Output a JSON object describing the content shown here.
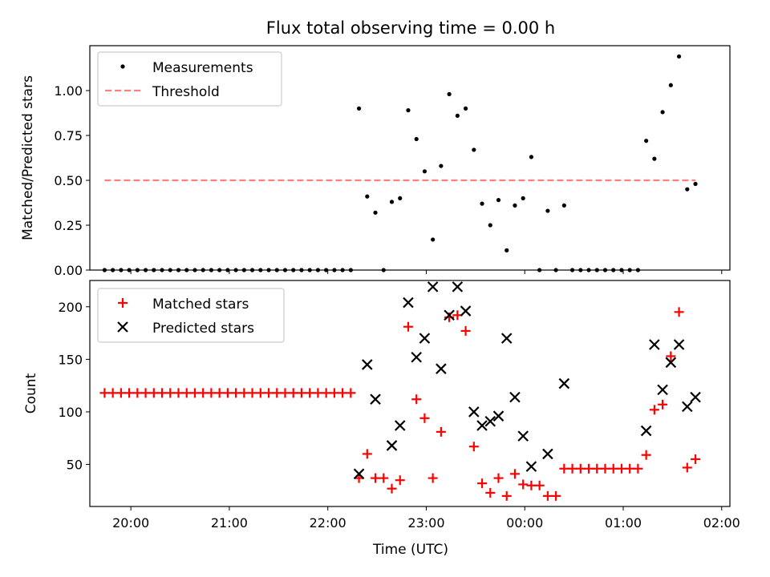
{
  "chart_data": [
    {
      "type": "scatter",
      "title": "Flux total observing time = 0.00 h",
      "xlabel": "",
      "ylabel": "Matched/Predicted stars",
      "ylim": [
        0,
        1.25
      ],
      "yticks": [
        "0.00",
        "0.25",
        "0.50",
        "0.75",
        "1.00"
      ],
      "ytick_values": [
        0,
        0.25,
        0.5,
        0.75,
        1.0
      ],
      "xlim": [
        "19:35",
        "02:05"
      ],
      "xtick_values": [
        "20:00",
        "21:00",
        "22:00",
        "23:00",
        "00:00",
        "01:00",
        "02:00"
      ],
      "legend_position": "top-left",
      "colors": {
        "measurements": "#000000",
        "threshold": "#ff7f7f"
      },
      "series": [
        {
          "name": "Measurements",
          "marker": "dot",
          "points": [
            [
              "19:44",
              0
            ],
            [
              "19:49",
              0
            ],
            [
              "19:54",
              0
            ],
            [
              "19:59",
              0
            ],
            [
              "20:04",
              0
            ],
            [
              "20:09",
              0
            ],
            [
              "20:14",
              0
            ],
            [
              "20:19",
              0
            ],
            [
              "20:24",
              0
            ],
            [
              "20:29",
              0
            ],
            [
              "20:34",
              0
            ],
            [
              "20:39",
              0
            ],
            [
              "20:44",
              0
            ],
            [
              "20:49",
              0
            ],
            [
              "20:54",
              0
            ],
            [
              "20:59",
              0
            ],
            [
              "21:04",
              0
            ],
            [
              "21:09",
              0
            ],
            [
              "21:14",
              0
            ],
            [
              "21:19",
              0
            ],
            [
              "21:24",
              0
            ],
            [
              "21:29",
              0
            ],
            [
              "21:34",
              0
            ],
            [
              "21:39",
              0
            ],
            [
              "21:44",
              0
            ],
            [
              "21:49",
              0
            ],
            [
              "21:54",
              0
            ],
            [
              "21:59",
              0
            ],
            [
              "22:04",
              0
            ],
            [
              "22:09",
              0
            ],
            [
              "22:14",
              0
            ],
            [
              "22:19",
              0.9
            ],
            [
              "22:24",
              0.41
            ],
            [
              "22:29",
              0.32
            ],
            [
              "22:34",
              0
            ],
            [
              "22:39",
              0.38
            ],
            [
              "22:44",
              0.4
            ],
            [
              "22:49",
              0.89
            ],
            [
              "22:54",
              0.73
            ],
            [
              "22:59",
              0.55
            ],
            [
              "23:04",
              0.17
            ],
            [
              "23:09",
              0.58
            ],
            [
              "23:14",
              0.98
            ],
            [
              "23:19",
              0.86
            ],
            [
              "23:24",
              0.9
            ],
            [
              "23:29",
              0.67
            ],
            [
              "23:34",
              0.37
            ],
            [
              "23:39",
              0.25
            ],
            [
              "23:44",
              0.39
            ],
            [
              "23:49",
              0.11
            ],
            [
              "23:54",
              0.36
            ],
            [
              "23:59",
              0.4
            ],
            [
              "00:04",
              0.63
            ],
            [
              "00:09",
              0
            ],
            [
              "00:14",
              0.33
            ],
            [
              "00:19",
              0
            ],
            [
              "00:24",
              0.36
            ],
            [
              "00:29",
              0
            ],
            [
              "00:34",
              0
            ],
            [
              "00:39",
              0
            ],
            [
              "00:44",
              0
            ],
            [
              "00:49",
              0
            ],
            [
              "00:54",
              0
            ],
            [
              "00:59",
              0
            ],
            [
              "01:04",
              0
            ],
            [
              "01:09",
              0
            ],
            [
              "01:14",
              0.72
            ],
            [
              "01:19",
              0.62
            ],
            [
              "01:24",
              0.88
            ],
            [
              "01:29",
              1.03
            ],
            [
              "01:34",
              1.19
            ],
            [
              "01:39",
              0.45
            ],
            [
              "01:44",
              0.48
            ]
          ]
        },
        {
          "name": "Threshold",
          "marker": "dashed-line",
          "points": [
            [
              "19:44",
              0.5
            ],
            [
              "01:44",
              0.5
            ]
          ]
        }
      ]
    },
    {
      "type": "scatter",
      "xlabel": "Time (UTC)",
      "ylabel": "Count",
      "ylim": [
        10,
        225
      ],
      "yticks": [
        "50",
        "100",
        "150",
        "200"
      ],
      "ytick_values": [
        50,
        100,
        150,
        200
      ],
      "xlim": [
        "19:35",
        "02:05"
      ],
      "xticks": [
        "20:00",
        "21:00",
        "22:00",
        "23:00",
        "00:00",
        "01:00",
        "02:00"
      ],
      "xtick_values": [
        "20:00",
        "21:00",
        "22:00",
        "23:00",
        "00:00",
        "01:00",
        "02:00"
      ],
      "legend_position": "top-left",
      "colors": {
        "matched": "#ff0000",
        "predicted": "#000000"
      },
      "series": [
        {
          "name": "Matched stars",
          "marker": "plus",
          "points": [
            [
              "19:44",
              118
            ],
            [
              "19:49",
              118
            ],
            [
              "19:54",
              118
            ],
            [
              "19:59",
              118
            ],
            [
              "20:04",
              118
            ],
            [
              "20:09",
              118
            ],
            [
              "20:14",
              118
            ],
            [
              "20:19",
              118
            ],
            [
              "20:24",
              118
            ],
            [
              "20:29",
              118
            ],
            [
              "20:34",
              118
            ],
            [
              "20:39",
              118
            ],
            [
              "20:44",
              118
            ],
            [
              "20:49",
              118
            ],
            [
              "20:54",
              118
            ],
            [
              "20:59",
              118
            ],
            [
              "21:04",
              118
            ],
            [
              "21:09",
              118
            ],
            [
              "21:14",
              118
            ],
            [
              "21:19",
              118
            ],
            [
              "21:24",
              118
            ],
            [
              "21:29",
              118
            ],
            [
              "21:34",
              118
            ],
            [
              "21:39",
              118
            ],
            [
              "21:44",
              118
            ],
            [
              "21:49",
              118
            ],
            [
              "21:54",
              118
            ],
            [
              "21:59",
              118
            ],
            [
              "22:04",
              118
            ],
            [
              "22:09",
              118
            ],
            [
              "22:14",
              118
            ],
            [
              "22:19",
              37
            ],
            [
              "22:24",
              60
            ],
            [
              "22:29",
              37
            ],
            [
              "22:34",
              37
            ],
            [
              "22:39",
              27
            ],
            [
              "22:44",
              35
            ],
            [
              "22:49",
              181
            ],
            [
              "22:54",
              112
            ],
            [
              "22:59",
              94
            ],
            [
              "23:04",
              37
            ],
            [
              "23:09",
              81
            ],
            [
              "23:14",
              190
            ],
            [
              "23:19",
              192
            ],
            [
              "23:24",
              177
            ],
            [
              "23:29",
              67
            ],
            [
              "23:34",
              32
            ],
            [
              "23:39",
              23
            ],
            [
              "23:44",
              37
            ],
            [
              "23:49",
              20
            ],
            [
              "23:54",
              41
            ],
            [
              "23:59",
              31
            ],
            [
              "00:04",
              30
            ],
            [
              "00:09",
              30
            ],
            [
              "00:14",
              20
            ],
            [
              "00:19",
              20
            ],
            [
              "00:24",
              46
            ],
            [
              "00:29",
              46
            ],
            [
              "00:34",
              46
            ],
            [
              "00:39",
              46
            ],
            [
              "00:44",
              46
            ],
            [
              "00:49",
              46
            ],
            [
              "00:54",
              46
            ],
            [
              "00:59",
              46
            ],
            [
              "01:04",
              46
            ],
            [
              "01:09",
              46
            ],
            [
              "01:14",
              59
            ],
            [
              "01:19",
              102
            ],
            [
              "01:24",
              107
            ],
            [
              "01:29",
              153
            ],
            [
              "01:34",
              195
            ],
            [
              "01:39",
              47
            ],
            [
              "01:44",
              55
            ]
          ]
        },
        {
          "name": "Predicted stars",
          "marker": "x",
          "points": [
            [
              "22:19",
              41
            ],
            [
              "22:24",
              145
            ],
            [
              "22:29",
              112
            ],
            [
              "22:39",
              68
            ],
            [
              "22:44",
              87
            ],
            [
              "22:49",
              204
            ],
            [
              "22:54",
              152
            ],
            [
              "22:59",
              170
            ],
            [
              "23:04",
              219
            ],
            [
              "23:09",
              141
            ],
            [
              "23:14",
              192
            ],
            [
              "23:19",
              219
            ],
            [
              "23:24",
              196
            ],
            [
              "23:29",
              100
            ],
            [
              "23:34",
              87
            ],
            [
              "23:39",
              91
            ],
            [
              "23:44",
              96
            ],
            [
              "23:49",
              170
            ],
            [
              "23:54",
              114
            ],
            [
              "23:59",
              77
            ],
            [
              "00:04",
              48
            ],
            [
              "00:14",
              60
            ],
            [
              "00:24",
              127
            ],
            [
              "01:14",
              82
            ],
            [
              "01:19",
              164
            ],
            [
              "01:24",
              121
            ],
            [
              "01:29",
              147
            ],
            [
              "01:34",
              164
            ],
            [
              "01:39",
              105
            ],
            [
              "01:44",
              114
            ]
          ]
        }
      ]
    }
  ]
}
